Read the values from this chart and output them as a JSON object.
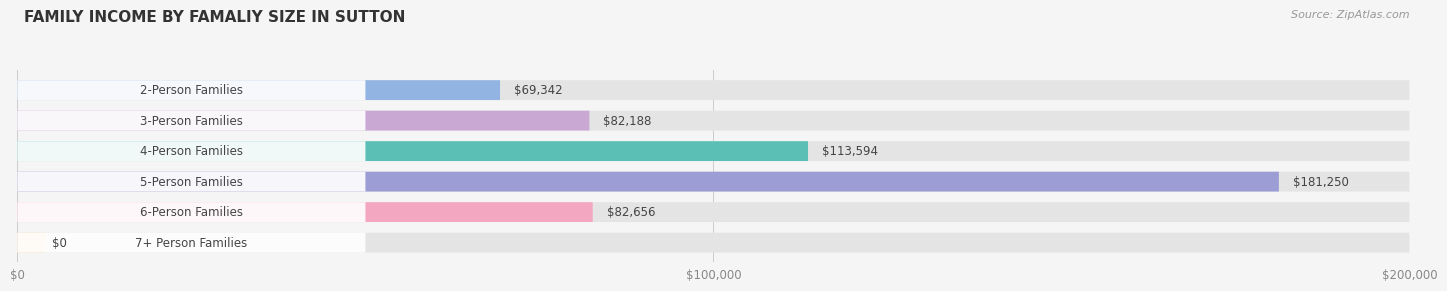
{
  "title": "FAMILY INCOME BY FAMALIY SIZE IN SUTTON",
  "source": "Source: ZipAtlas.com",
  "categories": [
    "2-Person Families",
    "3-Person Families",
    "4-Person Families",
    "5-Person Families",
    "6-Person Families",
    "7+ Person Families"
  ],
  "values": [
    69342,
    82188,
    113594,
    181250,
    82656,
    0
  ],
  "bar_colors": [
    "#92B4E3",
    "#C9A8D4",
    "#5BBFB5",
    "#9B9DD4",
    "#F4A7C0",
    "#F5D5A8"
  ],
  "value_labels": [
    "$69,342",
    "$82,188",
    "$113,594",
    "$181,250",
    "$82,656",
    "$0"
  ],
  "xlim": [
    0,
    200000
  ],
  "xticks": [
    0,
    100000,
    200000
  ],
  "xtick_labels": [
    "$0",
    "$100,000",
    "$200,000"
  ],
  "background_color": "#f5f5f5",
  "bar_bg_color": "#e4e4e4",
  "title_fontsize": 11,
  "label_fontsize": 8.5,
  "value_fontsize": 8.5,
  "source_fontsize": 8
}
